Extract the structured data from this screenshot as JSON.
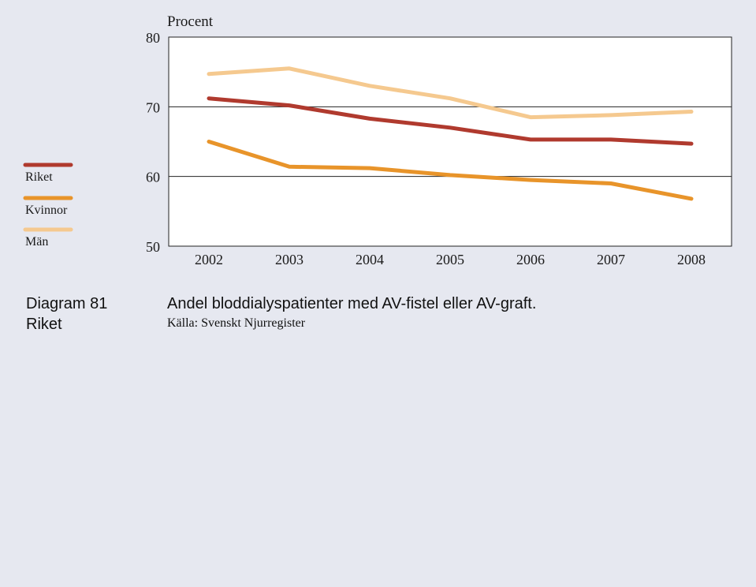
{
  "chart_data": {
    "type": "line",
    "ylabel": "Procent",
    "x": [
      2002,
      2003,
      2004,
      2005,
      2006,
      2007,
      2008
    ],
    "x_tick_labels": [
      "2002",
      "2003",
      "2004",
      "2005",
      "2006",
      "2007",
      "2008"
    ],
    "ylim": [
      50,
      80
    ],
    "y_ticks": [
      50,
      60,
      70,
      80
    ],
    "y_tick_labels": [
      "50",
      "60",
      "70",
      "80"
    ],
    "gridlines_at": [
      60,
      70
    ],
    "legend_position": "left",
    "series": [
      {
        "name": "Riket",
        "color": "#b03a2e",
        "values": [
          71.2,
          70.2,
          68.3,
          67.0,
          65.3,
          65.3,
          64.7
        ]
      },
      {
        "name": "Kvinnor",
        "color": "#e8942a",
        "values": [
          65.0,
          61.4,
          61.2,
          60.2,
          59.5,
          59.0,
          56.8
        ]
      },
      {
        "name": "Män",
        "color": "#f5c98f",
        "values": [
          74.7,
          75.5,
          73.0,
          71.2,
          68.5,
          68.8,
          69.3
        ]
      }
    ]
  },
  "caption": {
    "diagram_number": "Diagram 81",
    "region": "Riket",
    "title": "Andel bloddialyspatienter med AV-fistel eller AV-graft.",
    "source": "Källa: Svenskt Njurregister"
  }
}
